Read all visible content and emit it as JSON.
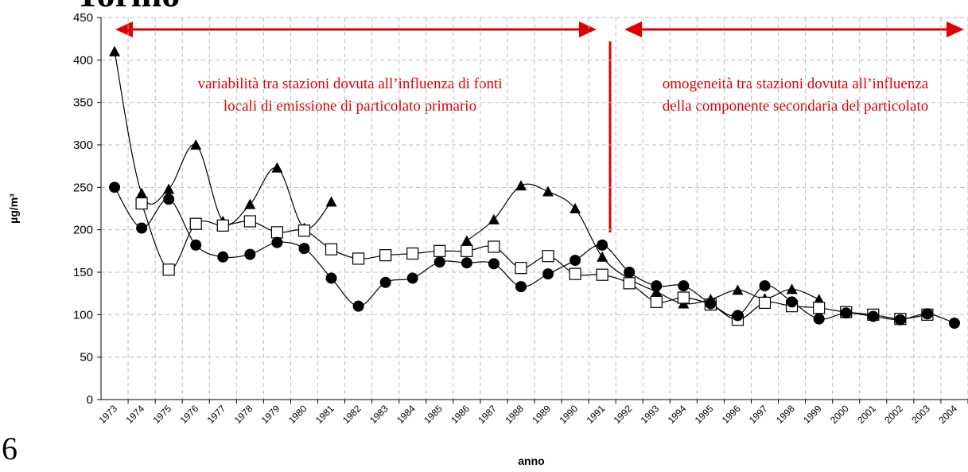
{
  "chart_data": {
    "type": "line",
    "title": "Torino",
    "page_number": "6",
    "y_label": "µg/m³",
    "x_label": "anno",
    "annotations": [
      "variabilità tra stazioni dovuta all’influenza di fonti",
      "locali di emissione di particolato primario",
      "omogeneità tra stazioni dovuta all’influenza",
      "della componente secondaria del particolato"
    ],
    "categories": [
      "1973",
      "1974",
      "1975",
      "1976",
      "1977",
      "1978",
      "1979",
      "1980",
      "1981",
      "1982",
      "1983",
      "1984",
      "1985",
      "1986",
      "1987",
      "1988",
      "1989",
      "1990",
      "1991",
      "1992",
      "1993",
      "1994",
      "1995",
      "1996",
      "1997",
      "1998",
      "1999",
      "2000",
      "2001",
      "2002",
      "2003",
      "2004"
    ],
    "series": [
      {
        "color": "#000000",
        "marker": "triangle",
        "values": [
          410,
          243,
          248,
          300,
          210,
          230,
          273,
          202,
          233,
          null,
          null,
          null,
          null,
          187,
          212,
          252,
          245,
          225,
          168,
          142,
          127,
          113,
          118,
          129,
          119,
          130,
          118,
          null,
          null,
          null,
          null,
          null
        ]
      },
      {
        "color": "#000000",
        "marker": "square",
        "values": [
          null,
          231,
          153,
          207,
          205,
          210,
          197,
          199,
          177,
          166,
          170,
          172,
          175,
          175,
          180,
          155,
          169,
          148,
          147,
          137,
          115,
          120,
          112,
          94,
          114,
          110,
          108,
          103,
          100,
          95,
          100,
          null
        ]
      },
      {
        "color": "#000000",
        "marker": "circle",
        "values": [
          250,
          202,
          236,
          182,
          168,
          171,
          185,
          178,
          143,
          110,
          138,
          143,
          162,
          161,
          160,
          133,
          148,
          164,
          182,
          150,
          134,
          134,
          113,
          99,
          134,
          115,
          95,
          102,
          98,
          94,
          101,
          90
        ]
      }
    ],
    "ylim": [
      0,
      450
    ],
    "yticks": [
      0,
      50,
      100,
      150,
      200,
      250,
      300,
      350,
      400,
      450
    ],
    "grid": true
  }
}
